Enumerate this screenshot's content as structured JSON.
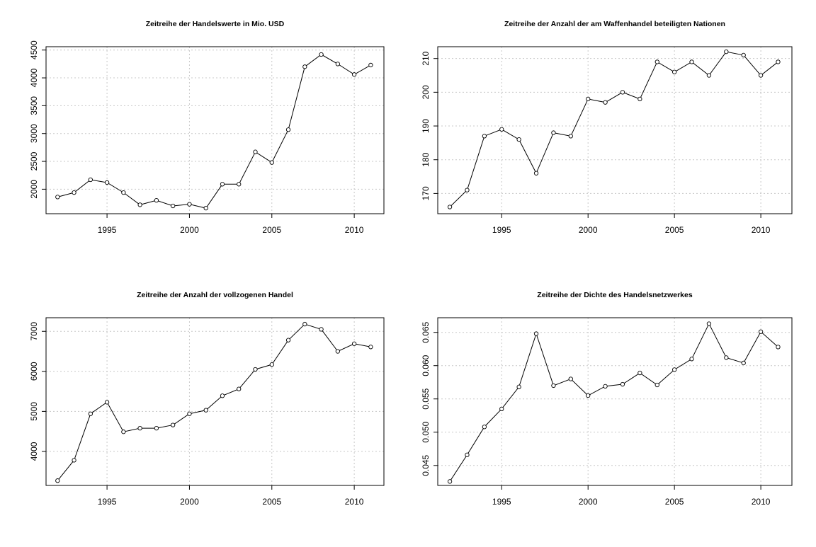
{
  "chart_data": [
    {
      "type": "line",
      "title": "Zeitreihe der Handelswerte in Mio. USD",
      "xlabel": "",
      "ylabel": "",
      "x": [
        1992,
        1993,
        1994,
        1995,
        1996,
        1997,
        1998,
        1999,
        2000,
        2001,
        2002,
        2003,
        2004,
        2005,
        2006,
        2007,
        2008,
        2009,
        2010,
        2011
      ],
      "series": [
        {
          "values": [
            1860,
            1940,
            2170,
            2120,
            1940,
            1720,
            1800,
            1700,
            1730,
            1660,
            2090,
            2090,
            2670,
            2480,
            3070,
            4200,
            4420,
            4250,
            4060,
            4230
          ]
        }
      ],
      "xlim": [
        1991.3,
        2011.8
      ],
      "ylim": [
        1560,
        4560
      ],
      "xticks": [
        "1995",
        "2000",
        "2005",
        "2010"
      ],
      "yticks": [
        "2000",
        "2500",
        "3000",
        "3500",
        "4000",
        "4500"
      ],
      "grid": true
    },
    {
      "type": "line",
      "title": "Zeitreihe der Anzahl der am Waffenhandel beteiligten Nationen",
      "xlabel": "",
      "ylabel": "",
      "x": [
        1992,
        1993,
        1994,
        1995,
        1996,
        1997,
        1998,
        1999,
        2000,
        2001,
        2002,
        2003,
        2004,
        2005,
        2006,
        2007,
        2008,
        2009,
        2010,
        2011
      ],
      "series": [
        {
          "values": [
            166,
            171,
            187,
            189,
            186,
            176,
            188,
            187,
            198,
            197,
            200,
            198,
            209,
            206,
            209,
            205,
            212,
            211,
            205,
            209
          ]
        }
      ],
      "xlim": [
        1991.3,
        2011.8
      ],
      "ylim": [
        164,
        213.5
      ],
      "xticks": [
        "1995",
        "2000",
        "2005",
        "2010"
      ],
      "yticks": [
        "170",
        "180",
        "190",
        "200",
        "210"
      ],
      "grid": true
    },
    {
      "type": "line",
      "title": "Zeitreihe der Anzahl der vollzogenen Handel",
      "xlabel": "",
      "ylabel": "",
      "x": [
        1992,
        1993,
        1994,
        1995,
        1996,
        1997,
        1998,
        1999,
        2000,
        2001,
        2002,
        2003,
        2004,
        2005,
        2006,
        2007,
        2008,
        2009,
        2010,
        2011
      ],
      "series": [
        {
          "values": [
            3270,
            3780,
            4940,
            5230,
            4490,
            4580,
            4580,
            4660,
            4940,
            5030,
            5390,
            5560,
            6050,
            6170,
            6780,
            7180,
            7050,
            6500,
            6690,
            6610
          ]
        }
      ],
      "xlim": [
        1991.3,
        2011.8
      ],
      "ylim": [
        3150,
        7340
      ],
      "xticks": [
        "1995",
        "2000",
        "2005",
        "2010"
      ],
      "yticks": [
        "4000",
        "5000",
        "6000",
        "7000"
      ],
      "grid": true
    },
    {
      "type": "line",
      "title": "Zeitreihe der Dichte des Handelsnetzwerkes",
      "xlabel": "",
      "ylabel": "",
      "x": [
        1992,
        1993,
        1994,
        1995,
        1996,
        1997,
        1998,
        1999,
        2000,
        2001,
        2002,
        2003,
        2004,
        2005,
        2006,
        2007,
        2008,
        2009,
        2010,
        2011
      ],
      "series": [
        {
          "values": [
            0.0426,
            0.0466,
            0.0508,
            0.0535,
            0.0568,
            0.0648,
            0.057,
            0.058,
            0.0555,
            0.0569,
            0.0572,
            0.0589,
            0.0571,
            0.0594,
            0.061,
            0.0663,
            0.0612,
            0.0604,
            0.0651,
            0.0628
          ]
        }
      ],
      "xlim": [
        1991.3,
        2011.8
      ],
      "ylim": [
        0.042,
        0.0672
      ],
      "xticks": [
        "1995",
        "2000",
        "2005",
        "2010"
      ],
      "yticks": [
        "0.045",
        "0.050",
        "0.055",
        "0.060",
        "0.065"
      ],
      "grid": true
    }
  ]
}
